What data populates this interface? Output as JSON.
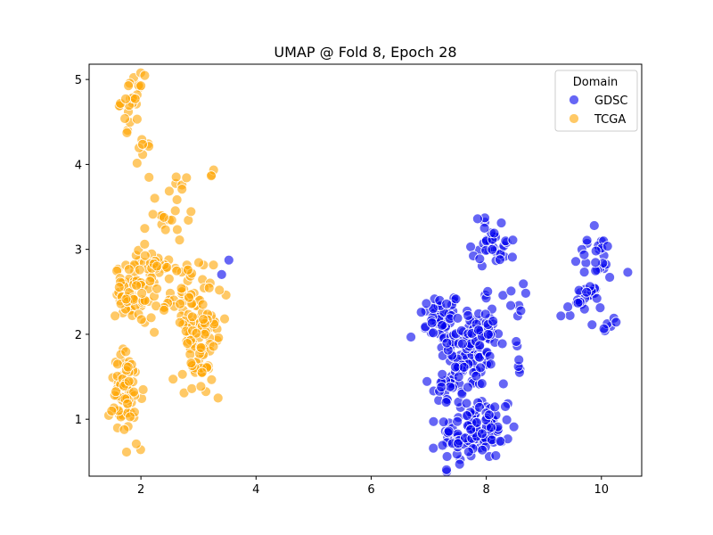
{
  "chart_data": {
    "type": "scatter",
    "title": "UMAP @ Fold 8, Epoch 28",
    "xlabel": "",
    "ylabel": "",
    "xlim": [
      1.1,
      10.7
    ],
    "ylim": [
      0.33,
      5.18
    ],
    "xticks": [
      2,
      4,
      6,
      8,
      10
    ],
    "yticks": [
      1,
      2,
      3,
      4,
      5
    ],
    "grid": false,
    "legend": {
      "title": "Domain",
      "placement": "top-right"
    },
    "series": [
      {
        "name": "GDSC",
        "color": "#0000ee",
        "clusters": [
          {
            "cx": 7.2,
            "cy": 2.2,
            "sx": 0.18,
            "sy": 0.15,
            "n": 45
          },
          {
            "cx": 7.7,
            "cy": 1.85,
            "sx": 0.25,
            "sy": 0.25,
            "n": 90
          },
          {
            "cx": 7.4,
            "cy": 1.4,
            "sx": 0.2,
            "sy": 0.15,
            "n": 30
          },
          {
            "cx": 7.7,
            "cy": 0.8,
            "sx": 0.25,
            "sy": 0.17,
            "n": 80
          },
          {
            "cx": 8.05,
            "cy": 0.95,
            "sx": 0.18,
            "sy": 0.2,
            "n": 40
          },
          {
            "cx": 8.0,
            "cy": 2.0,
            "sx": 0.1,
            "sy": 0.25,
            "n": 25
          },
          {
            "cx": 8.15,
            "cy": 3.1,
            "sx": 0.2,
            "sy": 0.15,
            "n": 35
          },
          {
            "cx": 8.45,
            "cy": 2.4,
            "sx": 0.1,
            "sy": 0.1,
            "n": 8
          },
          {
            "cx": 8.55,
            "cy": 1.7,
            "sx": 0.02,
            "sy": 0.15,
            "n": 6
          },
          {
            "cx": 9.7,
            "cy": 2.4,
            "sx": 0.15,
            "sy": 0.1,
            "n": 25
          },
          {
            "cx": 9.9,
            "cy": 2.9,
            "sx": 0.2,
            "sy": 0.15,
            "n": 25
          },
          {
            "cx": 10.1,
            "cy": 2.1,
            "sx": 0.1,
            "sy": 0.05,
            "n": 6
          },
          {
            "cx": 9.3,
            "cy": 2.22,
            "sx": 0.01,
            "sy": 0.01,
            "n": 1
          },
          {
            "cx": 3.4,
            "cy": 2.72,
            "sx": 0.02,
            "sy": 0.02,
            "n": 1
          },
          {
            "cx": 3.5,
            "cy": 2.88,
            "sx": 0.02,
            "sy": 0.02,
            "n": 1
          }
        ]
      },
      {
        "name": "TCGA",
        "color": "#ffa500",
        "clusters": [
          {
            "cx": 1.85,
            "cy": 4.75,
            "sx": 0.1,
            "sy": 0.15,
            "n": 25
          },
          {
            "cx": 2.05,
            "cy": 4.1,
            "sx": 0.05,
            "sy": 0.12,
            "n": 8
          },
          {
            "cx": 1.75,
            "cy": 1.3,
            "sx": 0.15,
            "sy": 0.25,
            "n": 70
          },
          {
            "cx": 1.8,
            "cy": 2.5,
            "sx": 0.12,
            "sy": 0.15,
            "n": 50
          },
          {
            "cx": 2.2,
            "cy": 2.8,
            "sx": 0.2,
            "sy": 0.4,
            "n": 50
          },
          {
            "cx": 2.65,
            "cy": 3.55,
            "sx": 0.1,
            "sy": 0.2,
            "n": 15
          },
          {
            "cx": 2.75,
            "cy": 2.5,
            "sx": 0.25,
            "sy": 0.2,
            "n": 40
          },
          {
            "cx": 3.0,
            "cy": 2.0,
            "sx": 0.25,
            "sy": 0.25,
            "n": 70
          },
          {
            "cx": 3.0,
            "cy": 1.6,
            "sx": 0.12,
            "sy": 0.15,
            "n": 20
          },
          {
            "cx": 3.25,
            "cy": 3.9,
            "sx": 0.03,
            "sy": 0.03,
            "n": 3
          },
          {
            "cx": 1.95,
            "cy": 0.65,
            "sx": 0.03,
            "sy": 0.03,
            "n": 2
          }
        ]
      }
    ]
  }
}
